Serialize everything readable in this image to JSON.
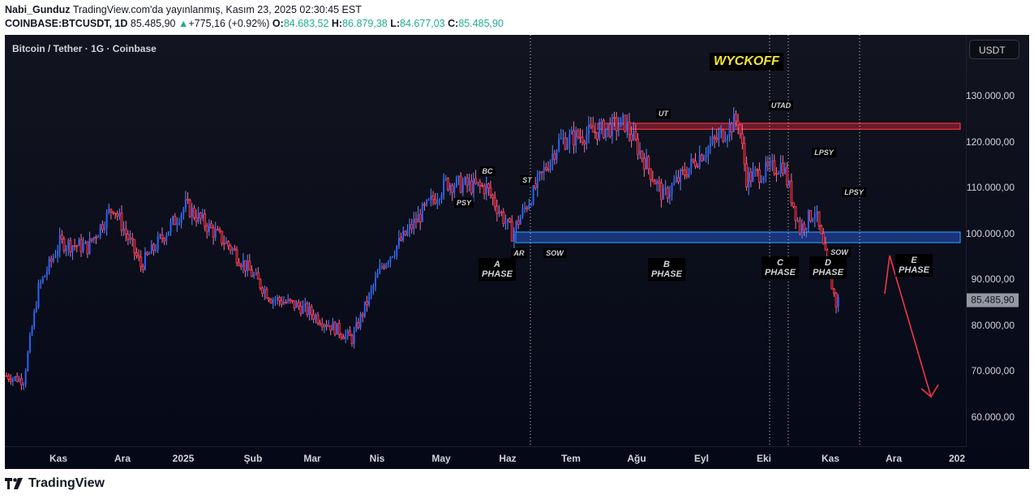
{
  "header": {
    "author": "Nabi_Gunduz",
    "published": "TradingView.com'da yayınlanmış, Kasım 23, 2025 02:30:45 EST",
    "symbol": "COINBASE:BTCUSDT, 1D",
    "price": "85.485,90",
    "change_arrow": "▲",
    "change": "+775,16 (+0.92%)",
    "o_label": "O:",
    "o": "84.683,52",
    "h_label": "H:",
    "h": "86.879,38",
    "l_label": "L:",
    "l": "84.677,03",
    "c_label": "C:",
    "c": "85.485,90"
  },
  "chart": {
    "legend": "Bitcoin / Tether · 1G · Coinbase",
    "currency": "USDT",
    "last_price_label": "85.485,90",
    "title_box": "WYCKOFF",
    "colors": {
      "up": "#2962ff",
      "down": "#f23645",
      "support_zone": "#1e3a8a",
      "resistance_zone": "#7f1d2d",
      "arrow": "#f23645"
    }
  },
  "brand": {
    "name": "TradingView"
  },
  "chart_data": {
    "type": "candlestick",
    "title": "Bitcoin / Tether · 1G · Coinbase",
    "annotation_title": "WYCKOFF",
    "ylabel": "USDT",
    "ylim": [
      55000,
      137000
    ],
    "y_ticks": [
      "130.000,00",
      "120.000,00",
      "110.000,00",
      "100.000,00",
      "90.000,00",
      "80.000,00",
      "70.000,00",
      "60.000,00"
    ],
    "x_ticks": [
      "Kas",
      "Ara",
      "2025",
      "Şub",
      "Mar",
      "Nis",
      "May",
      "Haz",
      "Tem",
      "Ağu",
      "Eyl",
      "Eki",
      "Kas",
      "Ara",
      "202"
    ],
    "last_price": 85485.9,
    "closes_approx": [
      {
        "date": "2024-10-28",
        "close": 69000
      },
      {
        "date": "2024-11-05",
        "close": 68000
      },
      {
        "date": "2024-11-12",
        "close": 88000
      },
      {
        "date": "2024-11-22",
        "close": 98000
      },
      {
        "date": "2024-12-05",
        "close": 97000
      },
      {
        "date": "2024-12-17",
        "close": 106000
      },
      {
        "date": "2024-12-30",
        "close": 93000
      },
      {
        "date": "2025-01-20",
        "close": 106000
      },
      {
        "date": "2025-02-10",
        "close": 97000
      },
      {
        "date": "2025-03-01",
        "close": 86000
      },
      {
        "date": "2025-03-15",
        "close": 84000
      },
      {
        "date": "2025-04-08",
        "close": 77000
      },
      {
        "date": "2025-04-22",
        "close": 93000
      },
      {
        "date": "2025-05-10",
        "close": 104000
      },
      {
        "date": "2025-05-22",
        "close": 111000
      },
      {
        "date": "2025-06-10",
        "close": 110000
      },
      {
        "date": "2025-06-22",
        "close": 100000
      },
      {
        "date": "2025-07-14",
        "close": 120000
      },
      {
        "date": "2025-08-14",
        "close": 124000
      },
      {
        "date": "2025-09-01",
        "close": 108000
      },
      {
        "date": "2025-09-18",
        "close": 117000
      },
      {
        "date": "2025-10-06",
        "close": 125000
      },
      {
        "date": "2025-10-10",
        "close": 112000
      },
      {
        "date": "2025-10-27",
        "close": 115000
      },
      {
        "date": "2025-11-04",
        "close": 101000
      },
      {
        "date": "2025-11-11",
        "close": 105000
      },
      {
        "date": "2025-11-21",
        "close": 84700
      },
      {
        "date": "2025-11-22",
        "close": 85486
      }
    ],
    "zones": [
      {
        "name": "resistance",
        "from": 122700,
        "to": 124000,
        "color": "#f23645"
      },
      {
        "name": "support",
        "from": 98000,
        "to": 100300,
        "color": "#2962ff"
      }
    ],
    "annotations": [
      "PSY",
      "BC",
      "ST",
      "AR",
      "SOW",
      "UT",
      "UTAD",
      "LPSY",
      "LPSY",
      "SOW",
      "A PHASE",
      "B PHASE",
      "C PHASE",
      "D PHASE",
      "E PHASE"
    ],
    "projection": "Arrow up to ~95.500 then down to ~64.000"
  },
  "annotations": {
    "psy": "PSY",
    "bc": "BC",
    "st": "ST",
    "ar": "AR",
    "sow1": "SOW",
    "ut": "UT",
    "utad": "UTAD",
    "lpsy1": "LPSY",
    "lpsy2": "LPSY",
    "sow2": "SOW",
    "phase_a_1": "A",
    "phase_a_2": "PHASE",
    "phase_b_1": "B",
    "phase_b_2": "PHASE",
    "phase_c_1": "C",
    "phase_c_2": "PHASE",
    "phase_d_1": "D",
    "phase_d_2": "PHASE",
    "phase_e_1": "E",
    "phase_e_2": "PHASE"
  },
  "axis": {
    "y": [
      "130.000,00",
      "120.000,00",
      "110.000,00",
      "100.000,00",
      "90.000,00",
      "80.000,00",
      "70.000,00",
      "60.000,00"
    ],
    "x": [
      "Kas",
      "Ara",
      "2025",
      "Şub",
      "Mar",
      "Nis",
      "May",
      "Haz",
      "Tem",
      "Ağu",
      "Eyl",
      "Eki",
      "Kas",
      "Ara",
      "202"
    ]
  }
}
